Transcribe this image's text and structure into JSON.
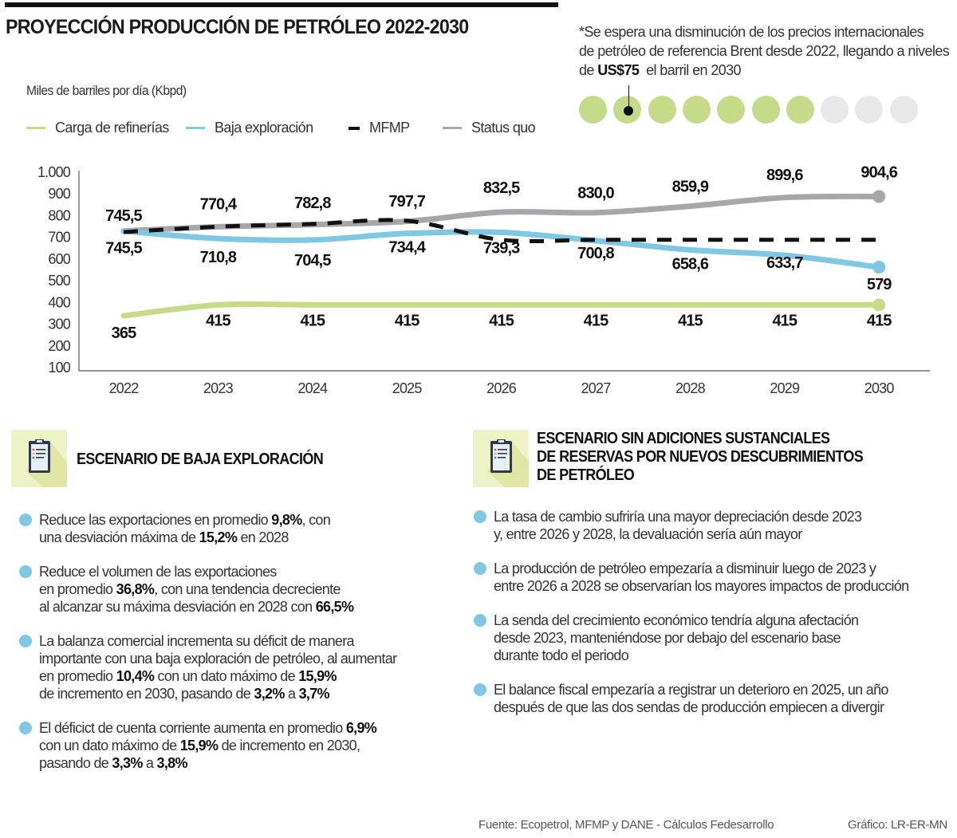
{
  "header": {
    "title": "PROYECCIÓN PRODUCCIÓN DE PETRÓLEO 2022-2030",
    "unit_label": "Miles de barriles por día (Kbpd)"
  },
  "note": {
    "line1": "*Se espera una disminución de los precios internacionales",
    "line2": "de petróleo de referencia Brent desde 2022, llegando a niveles",
    "line3_pre": "de ",
    "line3_bold": "US$75",
    "line3_post": "  el barril en 2030",
    "dots_total": 10,
    "dots_filled": 7,
    "dot_marker_index": 1,
    "filled_color": "#c5db87",
    "empty_color": "#e8e8e8"
  },
  "chart_data": {
    "type": "line",
    "title": "PROYECCIÓN PRODUCCIÓN DE PETRÓLEO 2022-2030",
    "xlabel": "",
    "ylabel": "Miles de barriles por día (Kbpd)",
    "x": [
      "2022",
      "2023",
      "2024",
      "2025",
      "2026",
      "2027",
      "2028",
      "2029",
      "2030"
    ],
    "yticks": [
      "1.000",
      "900",
      "800",
      "700",
      "600",
      "500",
      "400",
      "300",
      "200",
      "100"
    ],
    "ylim": [
      100,
      1000
    ],
    "grid": false,
    "legend_position": "top-left",
    "series": [
      {
        "name": "Carga de refinerías",
        "color": "#c5db87",
        "style": "solid",
        "values": [
          365,
          415,
          415,
          415,
          415,
          415,
          415,
          415,
          415
        ],
        "labels": [
          "365",
          "415",
          "415",
          "415",
          "415",
          "415",
          "415",
          "415",
          "415"
        ]
      },
      {
        "name": "Baja exploración",
        "color": "#7ec8e3",
        "style": "solid",
        "values": [
          745.5,
          710.8,
          704.5,
          734.4,
          739.3,
          700.8,
          658.6,
          633.7,
          579
        ],
        "labels": [
          "745,5",
          "710,8",
          "704,5",
          "734,4",
          "739,3",
          "700,8",
          "658,6",
          "633,7",
          "579"
        ]
      },
      {
        "name": "MFMP",
        "color": "#111111",
        "style": "dashed",
        "values": [
          745.5,
          770.4,
          782.8,
          797.7,
          710,
          710,
          710,
          710,
          710
        ],
        "labels": [
          "745,5",
          "770,4",
          "782,8",
          "797,7",
          "",
          "",
          "",
          "",
          ""
        ]
      },
      {
        "name": "Status quo",
        "color": "#a8a6ab",
        "style": "solid",
        "values": [
          745.5,
          765,
          775,
          790,
          832.5,
          830.0,
          859.9,
          899.6,
          904.6
        ],
        "labels": [
          "",
          "",
          "",
          "",
          "832,5",
          "830,0",
          "859,9",
          "899,6",
          "904,6"
        ]
      }
    ]
  },
  "cards": [
    {
      "title_lines": [
        "ESCENARIO DE BAJA EXPLORACIÓN"
      ],
      "bullets": [
        [
          [
            "Reduce las exportaciones en promedio ",
            false
          ],
          [
            "9,8%",
            true
          ],
          [
            ", con",
            false
          ],
          [
            "\n",
            false
          ],
          [
            "una desviación máxima de ",
            false
          ],
          [
            "15,2%",
            true
          ],
          [
            " en 2028",
            false
          ]
        ],
        [
          [
            "Reduce el volumen de las exportaciones",
            false
          ],
          [
            "\n",
            false
          ],
          [
            "en promedio ",
            false
          ],
          [
            "36,8%",
            true
          ],
          [
            ", con una tendencia decreciente",
            false
          ],
          [
            "\n",
            false
          ],
          [
            "al alcanzar su máxima desviación en 2028 con ",
            false
          ],
          [
            "66,5%",
            true
          ]
        ],
        [
          [
            "La balanza comercial incrementa su déficit de manera",
            false
          ],
          [
            "\n",
            false
          ],
          [
            "importante con una baja exploración de petróleo, al aumentar",
            false
          ],
          [
            "\n",
            false
          ],
          [
            "en promedio ",
            false
          ],
          [
            "10,4%",
            true
          ],
          [
            " con un dato máximo de ",
            false
          ],
          [
            "15,9%",
            true
          ],
          [
            "\n",
            false
          ],
          [
            "de incremento en 2030, pasando de ",
            false
          ],
          [
            "3,2%",
            true
          ],
          [
            " a ",
            false
          ],
          [
            "3,7%",
            true
          ]
        ],
        [
          [
            "El déficict de cuenta corriente aumenta en promedio ",
            false
          ],
          [
            "6,9%",
            true
          ],
          [
            "\n",
            false
          ],
          [
            "con un dato máximo de ",
            false
          ],
          [
            "15,9%",
            true
          ],
          [
            " de incremento en 2030,",
            false
          ],
          [
            "\n",
            false
          ],
          [
            "pasando de ",
            false
          ],
          [
            "3,3%",
            true
          ],
          [
            " a ",
            false
          ],
          [
            "3,8%",
            true
          ]
        ]
      ]
    },
    {
      "title_lines": [
        "ESCENARIO SIN ADICIONES SUSTANCIALES",
        "DE RESERVAS POR NUEVOS DESCUBRIMIENTOS",
        "DE PETRÓLEO"
      ],
      "bullets": [
        [
          [
            "La tasa de cambio sufriría una mayor depreciación desde 2023",
            false
          ],
          [
            "\n",
            false
          ],
          [
            "y, entre 2026 y 2028, la devaluación sería aún mayor",
            false
          ]
        ],
        [
          [
            "La producción de petróleo empezaría a disminuir luego de 2023 y",
            false
          ],
          [
            "\n",
            false
          ],
          [
            "entre 2026 a 2028 se observarían los mayores impactos de producción",
            false
          ]
        ],
        [
          [
            "La senda del crecimiento económico tendría alguna afectación",
            false
          ],
          [
            "\n",
            false
          ],
          [
            "desde 2023, manteniéndose por debajo del escenario base",
            false
          ],
          [
            "\n",
            false
          ],
          [
            "durante todo el periodo",
            false
          ]
        ],
        [
          [
            "El balance fiscal empezaría a registrar un deterioro en 2025, un año",
            false
          ],
          [
            "\n",
            false
          ],
          [
            "después de que las dos sendas de producción empiecen a divergir",
            false
          ]
        ]
      ]
    }
  ],
  "footer": {
    "source": "Fuente: Ecopetrol, MFMP y DANE - Cálculos Fedesarrollo",
    "credit": "Gráfico: LR-ER-MN"
  }
}
